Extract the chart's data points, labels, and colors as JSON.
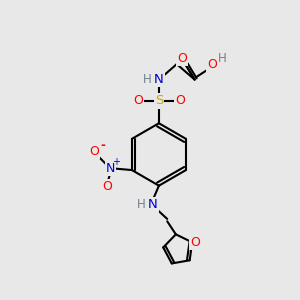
{
  "background_color": "#e8e8e8",
  "atom_colors": {
    "C": "#000000",
    "H": "#708090",
    "N": "#0000cd",
    "O": "#ff0000",
    "S": "#ccaa00"
  },
  "figsize": [
    3.0,
    3.0
  ],
  "dpi": 100
}
